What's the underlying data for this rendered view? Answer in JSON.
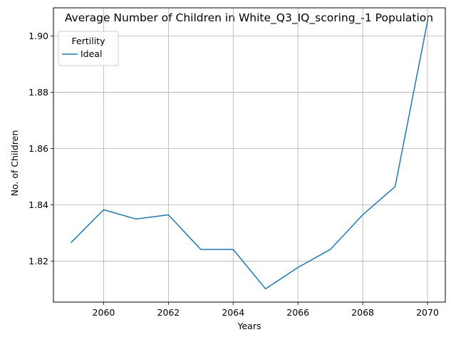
{
  "chart_data": {
    "type": "line",
    "title": "Average Number of Children in White_Q3_IQ_scoring_-1 Population",
    "xlabel": "Years",
    "ylabel": "No. of Children",
    "x": [
      2059,
      2060,
      2061,
      2062,
      2063,
      2064,
      2065,
      2066,
      2067,
      2068,
      2069,
      2070
    ],
    "series": [
      {
        "name": "Ideal",
        "color": "#1f77b4",
        "values": [
          1.8267,
          1.8383,
          1.835,
          1.8365,
          1.8242,
          1.8242,
          1.8102,
          1.8178,
          1.8242,
          1.8365,
          1.8465,
          1.9052
        ]
      }
    ],
    "xlim": [
      2058.45,
      2070.55
    ],
    "ylim": [
      1.8055,
      1.91
    ],
    "xticks": [
      2060,
      2062,
      2064,
      2066,
      2068,
      2070
    ],
    "yticks": [
      1.82,
      1.84,
      1.86,
      1.88,
      1.9
    ],
    "ytick_labels": [
      "1.82",
      "1.84",
      "1.86",
      "1.88",
      "1.90"
    ],
    "grid": true,
    "legend": {
      "title": "Fertility",
      "placement": "top-left"
    }
  }
}
